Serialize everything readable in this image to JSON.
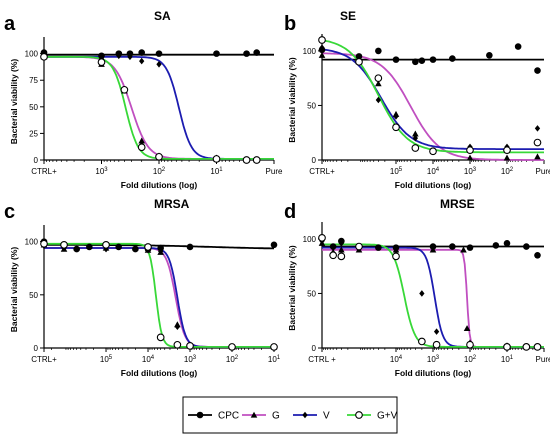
{
  "chart_data": [
    {
      "panel": "a",
      "title": "SA",
      "type": "line",
      "xlabel": "Fold dilutions (log)",
      "ylabel": "Bacterial viability (%)",
      "x_scale": "log_reversed",
      "xlim": [
        10000,
        1
      ],
      "ylim": [
        0,
        110
      ],
      "yticks": [
        0,
        25,
        50,
        75,
        100
      ],
      "xticks": [
        {
          "x": 10000,
          "label": "CTRL+"
        },
        {
          "x": 1000,
          "label": "10",
          "sup": "3"
        },
        {
          "x": 100,
          "label": "10",
          "sup": "2"
        },
        {
          "x": 10,
          "label": "10",
          "sup": "1"
        },
        {
          "x": 1,
          "label": "Pure"
        }
      ],
      "series": [
        {
          "name": "CPC",
          "color": "#000000",
          "marker": "circle-filled",
          "points": [
            [
              10000,
              101
            ],
            [
              1000,
              98
            ],
            [
              500,
              100
            ],
            [
              320,
              100
            ],
            [
              200,
              101
            ],
            [
              100,
              100
            ],
            [
              10,
              100
            ],
            [
              3,
              100
            ],
            [
              2,
              101
            ]
          ],
          "fit": {
            "top": 99,
            "bottom": 99,
            "ic50": 100,
            "hill": 1
          }
        },
        {
          "name": "G",
          "color": "#c04fc0",
          "marker": "triangle",
          "points": [
            [
              10000,
              97
            ],
            [
              1000,
              90
            ],
            [
              400,
              65
            ],
            [
              200,
              18
            ],
            [
              100,
              4
            ],
            [
              10,
              1
            ],
            [
              3,
              0
            ],
            [
              2,
              0
            ]
          ],
          "fit": {
            "top": 97,
            "bottom": 1,
            "ic50": 300,
            "hill": 3
          }
        },
        {
          "name": "V",
          "color": "#1c1cb0",
          "marker": "diamond",
          "points": [
            [
              10000,
              98
            ],
            [
              1000,
              95
            ],
            [
              500,
              98
            ],
            [
              320,
              97
            ],
            [
              200,
              93
            ],
            [
              100,
              90
            ],
            [
              10,
              2
            ],
            [
              3,
              0
            ],
            [
              2,
              0
            ]
          ],
          "fit": {
            "top": 97,
            "bottom": 1,
            "ic50": 45,
            "hill": 4
          }
        },
        {
          "name": "G+V",
          "color": "#38d838",
          "marker": "circle-open",
          "points": [
            [
              10000,
              97
            ],
            [
              1000,
              92
            ],
            [
              400,
              66
            ],
            [
              200,
              12
            ],
            [
              100,
              3
            ],
            [
              10,
              1
            ],
            [
              3,
              0
            ],
            [
              2,
              0
            ]
          ],
          "fit": {
            "top": 97,
            "bottom": 1,
            "ic50": 380,
            "hill": 4
          }
        }
      ]
    },
    {
      "panel": "b",
      "title": "SE",
      "type": "line",
      "xlabel": "Fold dilutions (log)",
      "ylabel": "Bacterial viability (%)",
      "x_scale": "log_reversed",
      "xlim": [
        10000000,
        10
      ],
      "ylim": [
        0,
        110
      ],
      "yticks": [
        0,
        50,
        100
      ],
      "xticks": [
        {
          "x": 10000000,
          "label": "CTRL+"
        },
        {
          "x": 100000,
          "label": "10",
          "sup": "5"
        },
        {
          "x": 10000,
          "label": "10",
          "sup": "4"
        },
        {
          "x": 1000,
          "label": "10",
          "sup": "3"
        },
        {
          "x": 100,
          "label": "10",
          "sup": "2"
        },
        {
          "x": 10,
          "label": "Pure"
        }
      ],
      "series": [
        {
          "name": "CPC",
          "color": "#000000",
          "marker": "circle-filled",
          "points": [
            [
              10000000,
              101
            ],
            [
              1000000,
              95
            ],
            [
              300000,
              100
            ],
            [
              100000,
              92
            ],
            [
              30000,
              90
            ],
            [
              20000,
              91
            ],
            [
              10000,
              92
            ],
            [
              3000,
              93
            ],
            [
              300,
              96
            ],
            [
              50,
              104
            ],
            [
              15,
              82
            ]
          ],
          "fit": {
            "top": 92,
            "bottom": 92,
            "ic50": 100000,
            "hill": 1
          }
        },
        {
          "name": "G",
          "color": "#c04fc0",
          "marker": "triangle",
          "points": [
            [
              10000000,
              96
            ],
            [
              1000000,
              90
            ],
            [
              300000,
              70
            ],
            [
              100000,
              42
            ],
            [
              30000,
              24
            ],
            [
              10000,
              8
            ],
            [
              1000,
              2
            ],
            [
              100,
              2
            ],
            [
              15,
              3
            ]
          ],
          "fit": {
            "top": 98,
            "bottom": 0,
            "ic50": 40000,
            "hill": 1.1
          }
        },
        {
          "name": "V",
          "color": "#1c1cb0",
          "marker": "diamond",
          "points": [
            [
              10000000,
              103
            ],
            [
              1000000,
              92
            ],
            [
              300000,
              55
            ],
            [
              100000,
              40
            ],
            [
              30000,
              20
            ],
            [
              10000,
              8
            ],
            [
              1000,
              12
            ],
            [
              100,
              12
            ],
            [
              15,
              29
            ]
          ],
          "fit": {
            "top": 103,
            "bottom": 10,
            "ic50": 250000,
            "hill": 1.1
          }
        },
        {
          "name": "G+V",
          "color": "#38d838",
          "marker": "circle-open",
          "points": [
            [
              10000000,
              110
            ],
            [
              1000000,
              90
            ],
            [
              300000,
              75
            ],
            [
              100000,
              30
            ],
            [
              30000,
              11
            ],
            [
              10000,
              8
            ],
            [
              1000,
              9
            ],
            [
              100,
              9
            ],
            [
              15,
              16
            ]
          ],
          "fit": {
            "top": 112,
            "bottom": 7,
            "ic50": 300000,
            "hill": 1.1
          }
        }
      ]
    },
    {
      "panel": "c",
      "title": "MRSA",
      "type": "line",
      "xlabel": "Fold dilutions (log)",
      "ylabel": "Bacterial viability (%)",
      "x_scale": "log_reversed",
      "xlim": [
        3000000,
        10
      ],
      "ylim": [
        0,
        110
      ],
      "yticks": [
        0,
        50,
        100
      ],
      "xticks": [
        {
          "x": 3000000,
          "label": "CTRL+"
        },
        {
          "x": 100000,
          "label": "10",
          "sup": "5"
        },
        {
          "x": 10000,
          "label": "10",
          "sup": "4"
        },
        {
          "x": 1000,
          "label": "10",
          "sup": "3"
        },
        {
          "x": 100,
          "label": "10",
          "sup": "2"
        },
        {
          "x": 10,
          "label": "10",
          "sup": "1"
        }
      ],
      "series": [
        {
          "name": "CPC",
          "color": "#000000",
          "marker": "circle-filled",
          "points": [
            [
              3000000,
              100
            ],
            [
              1000000,
              96
            ],
            [
              500000,
              93
            ],
            [
              250000,
              95
            ],
            [
              100000,
              97
            ],
            [
              50000,
              95
            ],
            [
              20000,
              93
            ],
            [
              10000,
              93
            ],
            [
              5000,
              94
            ],
            [
              1000,
              95
            ],
            [
              10,
              97
            ]
          ],
          "fit": {
            "top": 97,
            "bottom": 93,
            "ic50": 300,
            "hill": 0.5
          }
        },
        {
          "name": "G",
          "color": "#c04fc0",
          "marker": "triangle",
          "points": [
            [
              3000000,
              97
            ],
            [
              1000000,
              93
            ],
            [
              100000,
              94
            ],
            [
              10000,
              92
            ],
            [
              5000,
              90
            ],
            [
              2000,
              22
            ],
            [
              1000,
              2
            ],
            [
              100,
              1
            ],
            [
              10,
              1
            ]
          ],
          "fit": {
            "top": 94,
            "bottom": 1,
            "ic50": 2200,
            "hill": 4
          }
        },
        {
          "name": "V",
          "color": "#1c1cb0",
          "marker": "diamond",
          "points": [
            [
              3000000,
              96
            ],
            [
              1000000,
              94
            ],
            [
              100000,
              93
            ],
            [
              10000,
              92
            ],
            [
              5000,
              91
            ],
            [
              2000,
              20
            ],
            [
              1000,
              2
            ],
            [
              100,
              1
            ],
            [
              10,
              1
            ]
          ],
          "fit": {
            "top": 94,
            "bottom": 1,
            "ic50": 2000,
            "hill": 4.5
          }
        },
        {
          "name": "G+V",
          "color": "#38d838",
          "marker": "circle-open",
          "points": [
            [
              3000000,
              98
            ],
            [
              1000000,
              97
            ],
            [
              100000,
              97
            ],
            [
              10000,
              95
            ],
            [
              5000,
              10
            ],
            [
              2000,
              3
            ],
            [
              1000,
              2
            ],
            [
              100,
              1
            ],
            [
              10,
              1
            ]
          ],
          "fit": {
            "top": 98,
            "bottom": 1,
            "ic50": 6500,
            "hill": 6
          }
        }
      ]
    },
    {
      "panel": "d",
      "title": "MRSE",
      "type": "line",
      "xlabel": "Fold dilutions (log)",
      "ylabel": "Bacterial viability (%)",
      "x_scale": "log_reversed",
      "xlim": [
        1000000,
        1
      ],
      "ylim": [
        0,
        110
      ],
      "yticks": [
        0,
        50,
        100
      ],
      "xticks": [
        {
          "x": 1000000,
          "label": "CTRL +"
        },
        {
          "x": 10000,
          "label": "10",
          "sup": "4"
        },
        {
          "x": 1000,
          "label": "10",
          "sup": "3"
        },
        {
          "x": 100,
          "label": "10",
          "sup": "2"
        },
        {
          "x": 10,
          "label": "10",
          "sup": "1"
        },
        {
          "x": 1,
          "label": "Pure"
        }
      ],
      "series": [
        {
          "name": "CPC",
          "color": "#000000",
          "marker": "circle-filled",
          "points": [
            [
              1000000,
              100
            ],
            [
              500000,
              93
            ],
            [
              300000,
              98
            ],
            [
              100000,
              93
            ],
            [
              30000,
              92
            ],
            [
              10000,
              92
            ],
            [
              1000,
              93
            ],
            [
              300,
              93
            ],
            [
              100,
              92
            ],
            [
              20,
              94
            ],
            [
              10,
              96
            ],
            [
              3,
              93
            ],
            [
              1.5,
              85
            ]
          ],
          "fit": {
            "top": 93,
            "bottom": 93,
            "ic50": 100,
            "hill": 1
          }
        },
        {
          "name": "G",
          "color": "#c04fc0",
          "marker": "triangle",
          "points": [
            [
              1000000,
              96
            ],
            [
              500000,
              88
            ],
            [
              300000,
              90
            ],
            [
              100000,
              90
            ],
            [
              10000,
              90
            ],
            [
              1000,
              90
            ],
            [
              150,
              90
            ],
            [
              120,
              18
            ],
            [
              100,
              5
            ],
            [
              10,
              2
            ],
            [
              3,
              1
            ],
            [
              1.5,
              1
            ]
          ],
          "fit": {
            "top": 90,
            "bottom": 1,
            "ic50": 120,
            "hill": 12
          }
        },
        {
          "name": "V",
          "color": "#1c1cb0",
          "marker": "diamond",
          "points": [
            [
              1000000,
              98
            ],
            [
              500000,
              92
            ],
            [
              300000,
              96
            ],
            [
              100000,
              91
            ],
            [
              10000,
              86
            ],
            [
              2000,
              50
            ],
            [
              800,
              15
            ],
            [
              100,
              3
            ],
            [
              10,
              2
            ],
            [
              3,
              1
            ],
            [
              1.5,
              1
            ]
          ],
          "fit": {
            "top": 92,
            "bottom": 1,
            "ic50": 900,
            "hill": 4
          }
        },
        {
          "name": "G+V",
          "color": "#38d838",
          "marker": "circle-open",
          "points": [
            [
              1000000,
              101
            ],
            [
              500000,
              85
            ],
            [
              300000,
              84
            ],
            [
              100000,
              93
            ],
            [
              10000,
              84
            ],
            [
              2000,
              6
            ],
            [
              800,
              3
            ],
            [
              100,
              3
            ],
            [
              10,
              1
            ],
            [
              3,
              1
            ],
            [
              1.5,
              1
            ]
          ],
          "fit": {
            "top": 95,
            "bottom": 1,
            "ic50": 6000,
            "hill": 3
          }
        }
      ]
    }
  ],
  "legend": [
    {
      "name": "CPC",
      "color": "#000000",
      "marker": "circle-filled"
    },
    {
      "name": "G",
      "color": "#c04fc0",
      "marker": "triangle"
    },
    {
      "name": "V",
      "color": "#1c1cb0",
      "marker": "diamond"
    },
    {
      "name": "G+V",
      "color": "#38d838",
      "marker": "circle-open"
    }
  ]
}
